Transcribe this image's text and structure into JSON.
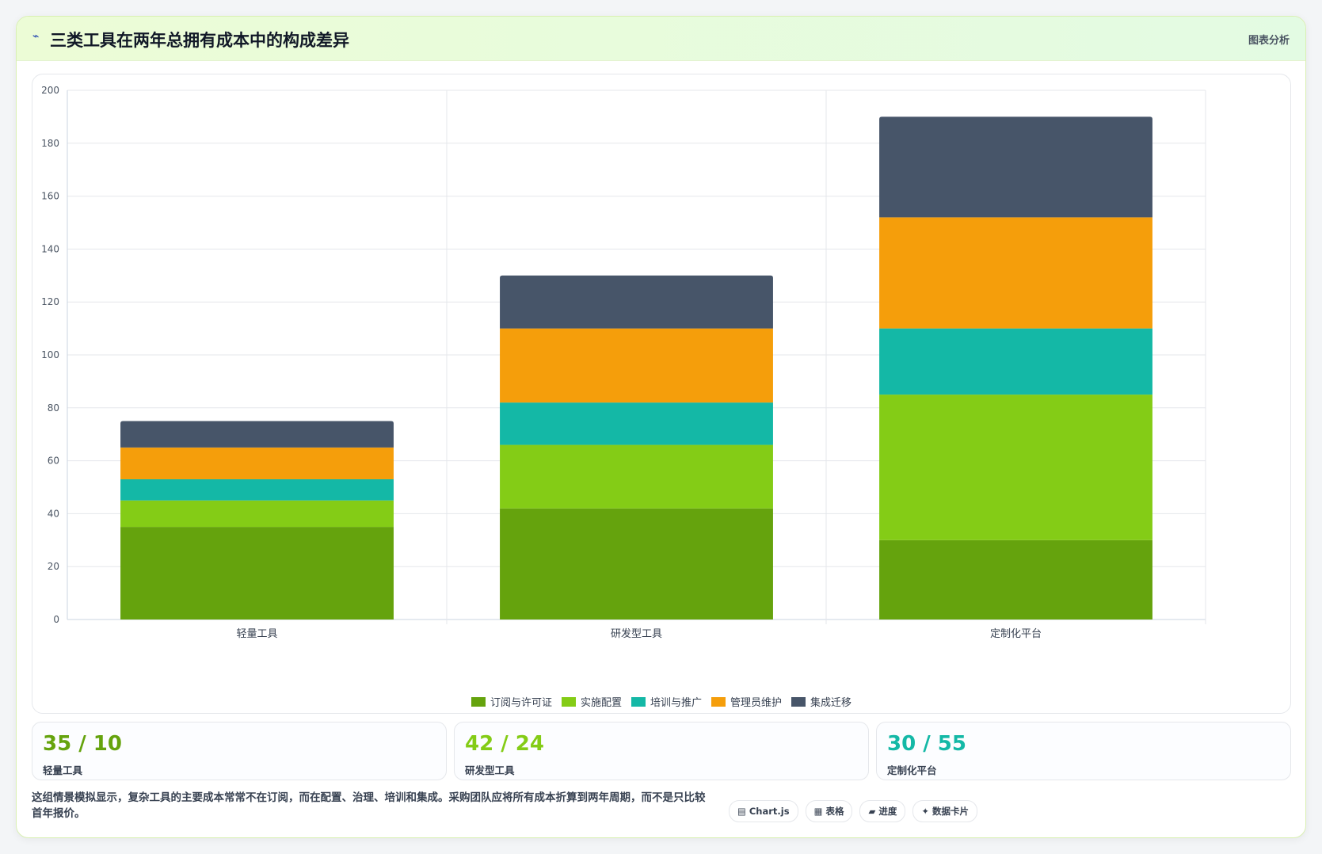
{
  "header": {
    "icon": "lightning-icon",
    "title": "三类工具在两年总拥有成本中的构成差异",
    "tag": "图表分析"
  },
  "chart_data": {
    "type": "bar",
    "stacked": true,
    "categories": [
      "轻量工具",
      "研发型工具",
      "定制化平台"
    ],
    "series": [
      {
        "name": "订阅与许可证",
        "color": "#65a30d",
        "values": [
          35,
          42,
          30
        ]
      },
      {
        "name": "实施配置",
        "color": "#84cc16",
        "values": [
          10,
          24,
          55
        ]
      },
      {
        "name": "培训与推广",
        "color": "#14b8a6",
        "values": [
          8,
          16,
          25
        ]
      },
      {
        "name": "管理员维护",
        "color": "#f59e0b",
        "values": [
          12,
          28,
          42
        ]
      },
      {
        "name": "集成迁移",
        "color": "#475569",
        "values": [
          10,
          20,
          38
        ]
      }
    ],
    "ylim": [
      0,
      200
    ],
    "yticks": [
      0,
      20,
      40,
      60,
      80,
      100,
      120,
      140,
      160,
      180,
      200
    ],
    "grid": true,
    "legend": "bottom"
  },
  "stats": [
    {
      "value": "35 / 10",
      "label": "轻量工具",
      "color": "#65a30d"
    },
    {
      "value": "42 / 24",
      "label": "研发型工具",
      "color": "#84cc16"
    },
    {
      "value": "30 / 55",
      "label": "定制化平台",
      "color": "#14b8a6"
    }
  ],
  "footer": {
    "note": "这组情景模拟显示，复杂工具的主要成本常常不在订阅，而在配置、治理、培训和集成。采购团队应将所有成本折算到两年周期，而不是只比较首年报价。",
    "chips": [
      "▤ Chart.js",
      "▦ 表格",
      "▰ 进度",
      "✦ 数据卡片"
    ]
  }
}
